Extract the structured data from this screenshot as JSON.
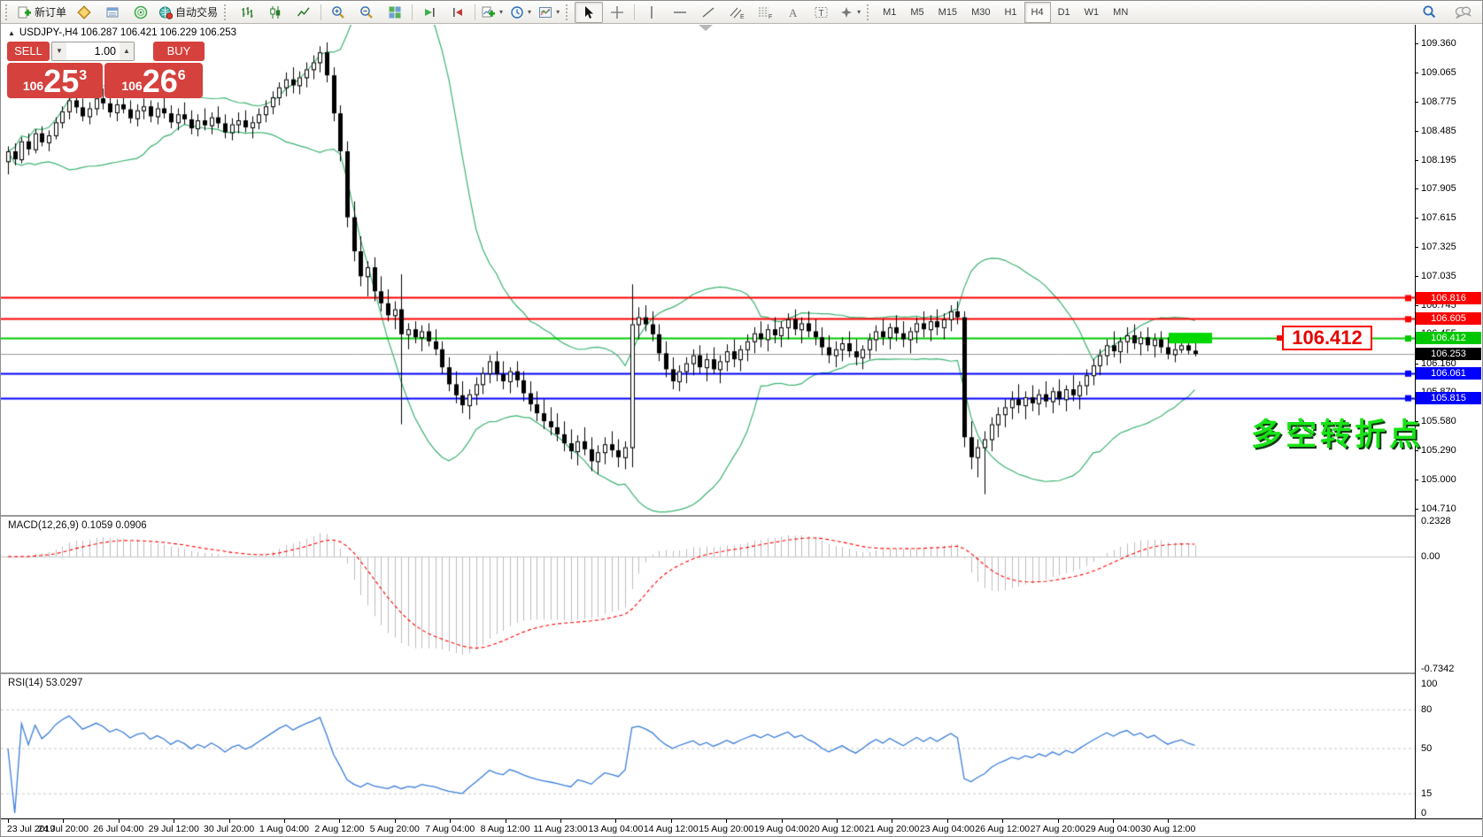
{
  "colors": {
    "accent_red": "#d5413d",
    "line_red": "#ff0000",
    "line_green": "#00c800",
    "line_blue": "#0000ff",
    "band_green": "#3cb371",
    "rsi_blue": "#3b7dd8",
    "macd_hist": "#bdbdbd",
    "macd_signal": "#ff0000",
    "highlight_green": "#00d800",
    "note_green": "#17e317",
    "current_price_gray": "#9c9c9c"
  },
  "toolbar": {
    "new_order_label": "新订单",
    "auto_trading_label": "自动交易",
    "timeframes": [
      "M1",
      "M5",
      "M15",
      "M30",
      "H1",
      "H4",
      "D1",
      "W1",
      "MN"
    ],
    "active_timeframe": "H4"
  },
  "one_click": {
    "sell_label": "SELL",
    "buy_label": "BUY",
    "volume": "1.00",
    "sell_small": "106",
    "sell_big": "25",
    "sell_sup": "3",
    "buy_small": "106",
    "buy_big": "26",
    "buy_sup": "6"
  },
  "header": {
    "symbol_line": "USDJPY-,H4  106.287 106.421 106.229 106.253"
  },
  "indicators": {
    "macd_label": "MACD(12,26,9) 0.1059 0.0906",
    "rsi_label": "RSI(14) 53.0297"
  },
  "annotations": {
    "price_box": "106.412",
    "note": "多空转折点"
  },
  "levels": [
    {
      "price": 106.816,
      "label": "106.816",
      "color": "#ff0000",
      "width": 2
    },
    {
      "price": 106.605,
      "label": "106.605",
      "color": "#ff0000",
      "width": 2
    },
    {
      "price": 106.412,
      "label": "106.412",
      "color": "#00c800",
      "width": 2
    },
    {
      "price": 106.253,
      "label": "106.253",
      "color": "#9c9c9c",
      "width": 1,
      "badge": "#000000",
      "current": true
    },
    {
      "price": 106.061,
      "label": "106.061",
      "color": "#0000ff",
      "width": 2
    },
    {
      "price": 105.815,
      "label": "105.815",
      "color": "#0000ff",
      "width": 2
    }
  ],
  "axes": {
    "price_ticks": [
      109.36,
      109.065,
      108.775,
      108.485,
      108.195,
      107.905,
      107.615,
      107.325,
      107.035,
      106.745,
      106.455,
      106.16,
      105.87,
      105.58,
      105.29,
      105.0,
      104.71
    ],
    "macd_ticks": [
      {
        "v": 0.2328,
        "label": "0.2328"
      },
      {
        "v": 0.0,
        "label": "0.00"
      },
      {
        "v": -0.7342,
        "label": "-0.7342"
      }
    ],
    "rsi_ticks": [
      {
        "v": 100,
        "label": "100"
      },
      {
        "v": 80,
        "label": "80",
        "dashed": true
      },
      {
        "v": 50,
        "label": "50",
        "dashed": true
      },
      {
        "v": 15,
        "label": "15",
        "dashed": true
      },
      {
        "v": 0,
        "label": "0"
      }
    ],
    "time_ticks": [
      "23 Jul 2019",
      "24 Jul 20:00",
      "26 Jul 04:00",
      "29 Jul 12:00",
      "30 Jul 20:00",
      "1 Aug 04:00",
      "2 Aug 12:00",
      "5 Aug 20:00",
      "7 Aug 04:00",
      "8 Aug 12:00",
      "11 Aug 23:00",
      "13 Aug 04:00",
      "14 Aug 12:00",
      "15 Aug 20:00",
      "19 Aug 04:00",
      "20 Aug 12:00",
      "21 Aug 20:00",
      "23 Aug 04:00",
      "26 Aug 12:00",
      "27 Aug 20:00",
      "29 Aug 04:00",
      "30 Aug 12:00"
    ]
  },
  "chart_data": {
    "type": "candlestick",
    "symbol": "USDJPY-",
    "timeframe": "H4",
    "last_bar": {
      "open": 106.287,
      "high": 106.421,
      "low": 106.229,
      "close": 106.253
    },
    "indicator_params": {
      "bollinger": [
        20,
        2
      ],
      "macd": [
        12,
        26,
        9
      ],
      "rsi": [
        14
      ]
    },
    "macd_last": {
      "main": 0.1059,
      "signal": 0.0906
    },
    "rsi_last": 53.0297,
    "highlight_zone": {
      "price": 106.412,
      "note": "green highlight segment on 106.412 line near latest bars"
    },
    "ohlc": [
      [
        108.18,
        108.33,
        108.05,
        108.28
      ],
      [
        108.28,
        108.36,
        108.14,
        108.2
      ],
      [
        108.2,
        108.42,
        108.16,
        108.38
      ],
      [
        108.38,
        108.46,
        108.24,
        108.3
      ],
      [
        108.3,
        108.5,
        108.26,
        108.46
      ],
      [
        108.46,
        108.53,
        108.33,
        108.37
      ],
      [
        108.37,
        108.49,
        108.28,
        108.44
      ],
      [
        108.44,
        108.62,
        108.4,
        108.57
      ],
      [
        108.57,
        108.73,
        108.51,
        108.68
      ],
      [
        108.68,
        108.83,
        108.6,
        108.79
      ],
      [
        108.79,
        108.88,
        108.66,
        108.72
      ],
      [
        108.72,
        108.81,
        108.58,
        108.63
      ],
      [
        108.63,
        108.77,
        108.55,
        108.71
      ],
      [
        108.71,
        108.86,
        108.64,
        108.81
      ],
      [
        108.81,
        108.91,
        108.7,
        108.76
      ],
      [
        108.76,
        108.85,
        108.62,
        108.67
      ],
      [
        108.67,
        108.8,
        108.58,
        108.75
      ],
      [
        108.75,
        108.87,
        108.66,
        108.7
      ],
      [
        108.7,
        108.79,
        108.56,
        108.61
      ],
      [
        108.61,
        108.75,
        108.53,
        108.69
      ],
      [
        108.69,
        108.81,
        108.6,
        108.73
      ],
      [
        108.73,
        108.79,
        108.57,
        108.63
      ],
      [
        108.63,
        108.77,
        108.55,
        108.71
      ],
      [
        108.71,
        108.83,
        108.61,
        108.66
      ],
      [
        108.66,
        108.74,
        108.51,
        108.57
      ],
      [
        108.57,
        108.71,
        108.49,
        108.65
      ],
      [
        108.65,
        108.77,
        108.55,
        108.6
      ],
      [
        108.6,
        108.69,
        108.45,
        108.51
      ],
      [
        108.51,
        108.65,
        108.43,
        108.59
      ],
      [
        108.59,
        108.71,
        108.49,
        108.54
      ],
      [
        108.54,
        108.67,
        108.45,
        108.62
      ],
      [
        108.62,
        108.73,
        108.51,
        108.56
      ],
      [
        108.56,
        108.65,
        108.41,
        108.47
      ],
      [
        108.47,
        108.61,
        108.39,
        108.55
      ],
      [
        108.55,
        108.67,
        108.46,
        108.59
      ],
      [
        108.59,
        108.69,
        108.47,
        108.52
      ],
      [
        108.52,
        108.63,
        108.41,
        108.57
      ],
      [
        108.57,
        108.71,
        108.5,
        108.65
      ],
      [
        108.65,
        108.79,
        108.57,
        108.73
      ],
      [
        108.73,
        108.88,
        108.65,
        108.82
      ],
      [
        108.82,
        108.97,
        108.74,
        108.92
      ],
      [
        108.92,
        109.07,
        108.83,
        109.0
      ],
      [
        109.0,
        109.12,
        108.86,
        108.94
      ],
      [
        108.94,
        109.08,
        108.85,
        109.02
      ],
      [
        109.02,
        109.17,
        108.92,
        109.1
      ],
      [
        109.1,
        109.24,
        109.0,
        109.17
      ],
      [
        109.17,
        109.33,
        109.07,
        109.27
      ],
      [
        109.27,
        109.37,
        108.97,
        109.04
      ],
      [
        109.04,
        109.12,
        108.58,
        108.66
      ],
      [
        108.66,
        108.74,
        108.18,
        108.28
      ],
      [
        108.28,
        108.38,
        107.52,
        107.62
      ],
      [
        107.62,
        107.78,
        107.18,
        107.28
      ],
      [
        107.28,
        107.43,
        106.93,
        107.03
      ],
      [
        107.03,
        107.18,
        106.83,
        107.12
      ],
      [
        107.12,
        107.22,
        106.78,
        106.88
      ],
      [
        106.88,
        107.03,
        106.68,
        106.76
      ],
      [
        106.76,
        106.9,
        106.58,
        106.64
      ],
      [
        106.64,
        106.78,
        106.5,
        106.7
      ],
      [
        106.7,
        107.05,
        105.55,
        106.45
      ],
      [
        106.45,
        106.56,
        106.3,
        106.5
      ],
      [
        106.5,
        106.58,
        106.36,
        106.42
      ],
      [
        106.42,
        106.54,
        106.28,
        106.48
      ],
      [
        106.48,
        106.56,
        106.33,
        106.38
      ],
      [
        106.38,
        106.5,
        106.24,
        106.3
      ],
      [
        106.3,
        106.38,
        106.05,
        106.12
      ],
      [
        106.12,
        106.22,
        105.88,
        105.95
      ],
      [
        105.95,
        106.08,
        105.76,
        105.84
      ],
      [
        105.84,
        105.98,
        105.66,
        105.74
      ],
      [
        105.74,
        105.9,
        105.6,
        105.85
      ],
      [
        105.85,
        106.02,
        105.74,
        105.95
      ],
      [
        105.95,
        106.12,
        105.85,
        106.06
      ],
      [
        106.06,
        106.24,
        105.96,
        106.18
      ],
      [
        106.18,
        106.28,
        105.98,
        106.05
      ],
      [
        106.05,
        106.18,
        105.9,
        105.98
      ],
      [
        105.98,
        106.12,
        105.86,
        106.08
      ],
      [
        106.08,
        106.18,
        105.92,
        105.99
      ],
      [
        105.99,
        106.08,
        105.78,
        105.86
      ],
      [
        105.86,
        105.98,
        105.68,
        105.75
      ],
      [
        105.75,
        105.88,
        105.58,
        105.66
      ],
      [
        105.66,
        105.8,
        105.5,
        105.58
      ],
      [
        105.58,
        105.72,
        105.44,
        105.52
      ],
      [
        105.52,
        105.66,
        105.38,
        105.45
      ],
      [
        105.45,
        105.58,
        105.28,
        105.36
      ],
      [
        105.36,
        105.5,
        105.2,
        105.28
      ],
      [
        105.28,
        105.44,
        105.14,
        105.38
      ],
      [
        105.38,
        105.52,
        105.24,
        105.3
      ],
      [
        105.3,
        105.42,
        105.08,
        105.18
      ],
      [
        105.18,
        105.34,
        105.05,
        105.27
      ],
      [
        105.27,
        105.42,
        105.15,
        105.35
      ],
      [
        105.35,
        105.48,
        105.22,
        105.29
      ],
      [
        105.29,
        105.4,
        105.12,
        105.22
      ],
      [
        105.22,
        105.38,
        105.1,
        105.32
      ],
      [
        105.32,
        106.95,
        105.12,
        106.55
      ],
      [
        106.55,
        106.72,
        106.4,
        106.62
      ],
      [
        106.62,
        106.74,
        106.48,
        106.55
      ],
      [
        106.55,
        106.68,
        106.38,
        106.45
      ],
      [
        106.45,
        106.55,
        106.18,
        106.26
      ],
      [
        106.26,
        106.38,
        106.02,
        106.1
      ],
      [
        106.1,
        106.22,
        105.9,
        105.98
      ],
      [
        105.98,
        106.14,
        105.88,
        106.08
      ],
      [
        106.08,
        106.22,
        105.96,
        106.16
      ],
      [
        106.16,
        106.3,
        106.04,
        106.24
      ],
      [
        106.24,
        106.34,
        106.06,
        106.12
      ],
      [
        106.12,
        106.26,
        105.98,
        106.2
      ],
      [
        106.2,
        106.32,
        106.05,
        106.1
      ],
      [
        106.1,
        106.24,
        105.96,
        106.18
      ],
      [
        106.18,
        106.35,
        106.08,
        106.28
      ],
      [
        106.28,
        106.4,
        106.12,
        106.2
      ],
      [
        106.2,
        106.34,
        106.08,
        106.3
      ],
      [
        106.3,
        106.45,
        106.18,
        106.38
      ],
      [
        106.38,
        106.52,
        106.26,
        106.46
      ],
      [
        106.46,
        106.58,
        106.32,
        106.4
      ],
      [
        106.4,
        106.55,
        106.28,
        106.5
      ],
      [
        106.5,
        106.62,
        106.36,
        106.44
      ],
      [
        106.44,
        106.58,
        106.32,
        106.52
      ],
      [
        106.52,
        106.66,
        106.4,
        106.6
      ],
      [
        106.6,
        106.7,
        106.44,
        106.5
      ],
      [
        106.5,
        106.62,
        106.36,
        106.56
      ],
      [
        106.56,
        106.68,
        106.42,
        106.48
      ],
      [
        106.48,
        106.6,
        106.34,
        106.42
      ],
      [
        106.42,
        106.52,
        106.24,
        106.32
      ],
      [
        106.32,
        106.44,
        106.16,
        106.24
      ],
      [
        106.24,
        106.38,
        106.12,
        106.3
      ],
      [
        106.3,
        106.42,
        106.18,
        106.36
      ],
      [
        106.36,
        106.48,
        106.22,
        106.28
      ],
      [
        106.28,
        106.4,
        106.14,
        106.22
      ],
      [
        106.22,
        106.34,
        106.1,
        106.3
      ],
      [
        106.3,
        106.46,
        106.2,
        106.4
      ],
      [
        106.4,
        106.54,
        106.28,
        106.48
      ],
      [
        106.48,
        106.6,
        106.34,
        106.42
      ],
      [
        106.42,
        106.56,
        106.3,
        106.52
      ],
      [
        106.52,
        106.64,
        106.38,
        106.46
      ],
      [
        106.46,
        106.58,
        106.32,
        106.4
      ],
      [
        106.4,
        106.52,
        106.26,
        106.48
      ],
      [
        106.48,
        106.62,
        106.36,
        106.56
      ],
      [
        106.56,
        106.68,
        106.42,
        106.5
      ],
      [
        106.5,
        106.64,
        106.38,
        106.58
      ],
      [
        106.58,
        106.7,
        106.44,
        106.52
      ],
      [
        106.52,
        106.66,
        106.4,
        106.6
      ],
      [
        106.6,
        106.74,
        106.48,
        106.68
      ],
      [
        106.68,
        106.78,
        106.55,
        106.62
      ],
      [
        106.62,
        106.68,
        105.32,
        105.42
      ],
      [
        105.42,
        105.58,
        105.1,
        105.22
      ],
      [
        105.22,
        105.4,
        105.02,
        105.32
      ],
      [
        105.32,
        105.48,
        104.85,
        105.4
      ],
      [
        105.4,
        105.62,
        105.28,
        105.55
      ],
      [
        105.55,
        105.72,
        105.42,
        105.65
      ],
      [
        105.65,
        105.8,
        105.52,
        105.72
      ],
      [
        105.72,
        105.88,
        105.6,
        105.8
      ],
      [
        105.8,
        105.95,
        105.66,
        105.74
      ],
      [
        105.74,
        105.88,
        105.6,
        105.82
      ],
      [
        105.82,
        105.94,
        105.68,
        105.76
      ],
      [
        105.76,
        105.9,
        105.64,
        105.85
      ],
      [
        105.85,
        105.98,
        105.72,
        105.78
      ],
      [
        105.78,
        105.92,
        105.66,
        105.88
      ],
      [
        105.88,
        106.0,
        105.74,
        105.8
      ],
      [
        105.8,
        105.94,
        105.68,
        105.9
      ],
      [
        105.9,
        106.04,
        105.78,
        105.84
      ],
      [
        105.84,
        105.98,
        105.7,
        105.94
      ],
      [
        105.94,
        106.1,
        105.84,
        106.04
      ],
      [
        106.04,
        106.2,
        105.94,
        106.14
      ],
      [
        106.14,
        106.3,
        106.04,
        106.24
      ],
      [
        106.24,
        106.4,
        106.14,
        106.34
      ],
      [
        106.34,
        106.48,
        106.22,
        106.28
      ],
      [
        106.28,
        106.42,
        106.16,
        106.38
      ],
      [
        106.38,
        106.52,
        106.26,
        106.44
      ],
      [
        106.44,
        106.55,
        106.3,
        106.36
      ],
      [
        106.36,
        106.48,
        106.24,
        106.42
      ],
      [
        106.42,
        106.52,
        106.28,
        106.34
      ],
      [
        106.34,
        106.46,
        106.22,
        106.4
      ],
      [
        106.4,
        106.48,
        106.26,
        106.32
      ],
      [
        106.32,
        106.42,
        106.2,
        106.25
      ],
      [
        106.25,
        106.36,
        106.17,
        106.3
      ],
      [
        106.3,
        106.45,
        106.26,
        106.34
      ],
      [
        106.34,
        106.42,
        106.25,
        106.287
      ],
      [
        106.287,
        106.421,
        106.229,
        106.253
      ]
    ]
  }
}
